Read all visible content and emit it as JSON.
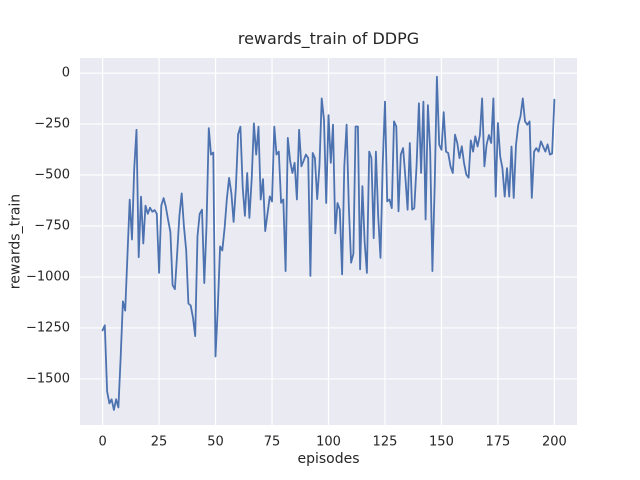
{
  "figure": {
    "background_color": "#ffffff",
    "axes_background_color": "#eaeaf2",
    "grid_color": "#ffffff",
    "text_color": "#262626",
    "line_color": "#4c72b0"
  },
  "chart_data": {
    "type": "line",
    "title": "rewards_train of DDPG",
    "xlabel": "episodes",
    "ylabel": "rewards_train",
    "xlim": [
      -10,
      210
    ],
    "ylim": [
      -1726,
      74
    ],
    "grid": true,
    "legend": false,
    "x_ticks": [
      0,
      25,
      50,
      75,
      100,
      125,
      150,
      175,
      200
    ],
    "x_tick_labels": [
      "0",
      "25",
      "50",
      "75",
      "100",
      "125",
      "150",
      "175",
      "200"
    ],
    "y_ticks": [
      0,
      -250,
      -500,
      -750,
      -1000,
      -1250,
      -1500
    ],
    "y_tick_labels": [
      "0",
      "−250",
      "−500",
      "−750",
      "−1000",
      "−1250",
      "−1500"
    ],
    "x_start": 0,
    "x_step": 1,
    "series": [
      {
        "name": "rewards_train",
        "color": "#4c72b0",
        "values": [
          -1262,
          -1237,
          -1560,
          -1620,
          -1600,
          -1652,
          -1600,
          -1640,
          -1390,
          -1120,
          -1165,
          -900,
          -621,
          -816,
          -470,
          -278,
          -903,
          -606,
          -836,
          -650,
          -690,
          -660,
          -680,
          -672,
          -690,
          -980,
          -650,
          -613,
          -655,
          -720,
          -780,
          -1040,
          -1060,
          -890,
          -700,
          -590,
          -750,
          -870,
          -1130,
          -1140,
          -1200,
          -1290,
          -800,
          -690,
          -670,
          -1030,
          -750,
          -270,
          -400,
          -390,
          -1390,
          -1150,
          -850,
          -870,
          -760,
          -620,
          -514,
          -590,
          -730,
          -560,
          -300,
          -263,
          -560,
          -700,
          -490,
          -710,
          -520,
          -247,
          -400,
          -263,
          -620,
          -520,
          -775,
          -690,
          -605,
          -630,
          -263,
          -400,
          -385,
          -636,
          -620,
          -971,
          -318,
          -430,
          -490,
          -440,
          -620,
          -278,
          -457,
          -430,
          -400,
          -417,
          -995,
          -392,
          -417,
          -618,
          -450,
          -124,
          -230,
          -637,
          -206,
          -440,
          -253,
          -786,
          -637,
          -670,
          -987,
          -457,
          -253,
          -650,
          -930,
          -886,
          -262,
          -262,
          -963,
          -555,
          -825,
          -980,
          -385,
          -417,
          -810,
          -385,
          -702,
          -906,
          -448,
          -140,
          -629,
          -620,
          -662,
          -237,
          -262,
          -678,
          -400,
          -368,
          -506,
          -670,
          -343,
          -670,
          -662,
          -450,
          -148,
          -490,
          -140,
          -718,
          -157,
          -385,
          -971,
          -550,
          -18,
          -351,
          -376,
          -192,
          -385,
          -392,
          -457,
          -490,
          -302,
          -343,
          -417,
          -359,
          -440,
          -498,
          -513,
          -330,
          -385,
          -310,
          -360,
          -304,
          -124,
          -457,
          -351,
          -304,
          -343,
          -124,
          -606,
          -245,
          -409,
          -466,
          -606,
          -466,
          -606,
          -360,
          -612,
          -351,
          -253,
          -212,
          -124,
          -237,
          -253,
          -237,
          -612,
          -385,
          -368,
          -385,
          -335,
          -360,
          -385,
          -350,
          -400,
          -395,
          -130
        ]
      }
    ]
  }
}
